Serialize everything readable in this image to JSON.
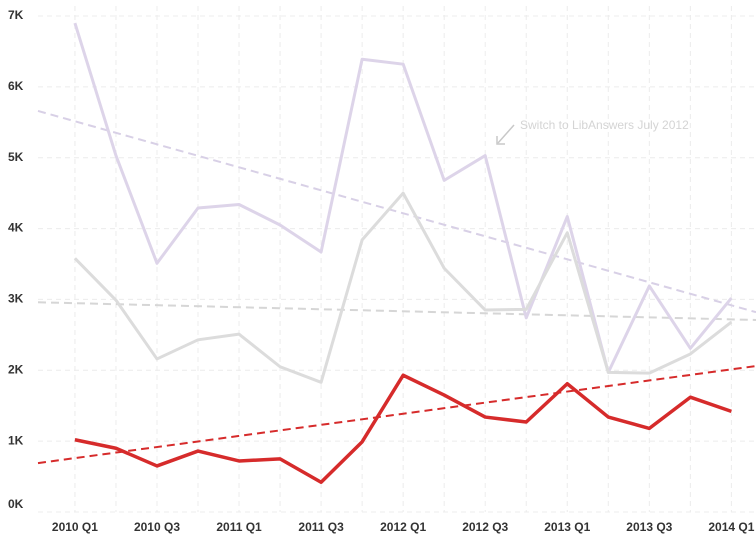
{
  "chart_data": {
    "type": "line",
    "categories": [
      "2010 Q1",
      null,
      "2010 Q3",
      null,
      "2011 Q1",
      null,
      "2011 Q3",
      null,
      "2012 Q1",
      null,
      "2012 Q3",
      null,
      "2013 Q1",
      null,
      "2013 Q3",
      null,
      "2014 Q1"
    ],
    "series": [
      {
        "color": "#ddd4e9",
        "values": [
          6.9,
          5.03,
          3.51,
          4.29,
          4.34,
          4.05,
          3.67,
          6.39,
          6.32,
          4.68,
          5.03,
          2.74,
          4.17,
          1.97,
          3.19,
          2.31,
          3.02
        ]
      },
      {
        "color": "#dcdcdc",
        "values": [
          3.58,
          2.99,
          2.16,
          2.43,
          2.51,
          2.05,
          1.83,
          3.84,
          4.5,
          3.44,
          2.85,
          2.86,
          3.94,
          1.97,
          1.96,
          2.23,
          2.68
        ]
      },
      {
        "color": "#d62b2b",
        "values": [
          1.02,
          0.9,
          0.65,
          0.86,
          0.72,
          0.75,
          0.42,
          0.99,
          1.93,
          1.65,
          1.34,
          1.27,
          1.81,
          1.34,
          1.18,
          1.62,
          1.42
        ]
      }
    ],
    "trendlines": [
      {
        "color": "#d8d0e6",
        "x": [
          -0.9,
          16.6
        ],
        "values": [
          5.66,
          2.82
        ]
      },
      {
        "color": "#d6d6d6",
        "x": [
          -0.9,
          16.6
        ],
        "values": [
          2.96,
          2.71
        ]
      },
      {
        "color": "#d62b2b",
        "x": [
          -0.9,
          16.6
        ],
        "values": [
          0.69,
          2.06
        ]
      }
    ],
    "annotation": "Switch to LibAnswers July 2012",
    "xlim": [
      -0.9,
      16.6
    ],
    "ylim": [
      0,
      7
    ],
    "yticks": [
      {
        "value": 0,
        "label": "0K"
      },
      {
        "value": 1,
        "label": "1K"
      },
      {
        "value": 2,
        "label": "2K"
      },
      {
        "value": 3,
        "label": "3K"
      },
      {
        "value": 4,
        "label": "4K"
      },
      {
        "value": 5,
        "label": "5K"
      },
      {
        "value": 6,
        "label": "6K"
      },
      {
        "value": 7,
        "label": "7K"
      }
    ],
    "grid": true
  }
}
